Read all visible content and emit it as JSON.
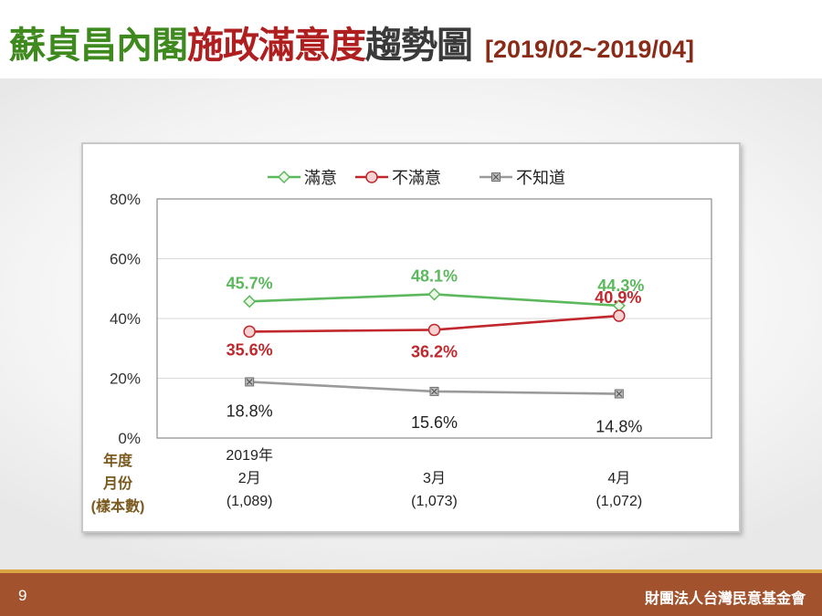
{
  "slide": {
    "title_part1": "蘇貞昌內閣",
    "title_part2": "施政滿意度",
    "title_part3": "趨勢圖",
    "title_range": "[2019/02~2019/04]",
    "page_number": "9",
    "organization": "財團法人台灣民意基金會"
  },
  "chart_data": {
    "type": "line",
    "categories": [
      "2019年 2月 (1,089)",
      "3月 (1,073)",
      "4月 (1,072)"
    ],
    "category_lines": [
      [
        "2019年",
        "2月",
        "(1,089)"
      ],
      [
        "3月",
        "(1,073)"
      ],
      [
        "4月",
        "(1,072)"
      ]
    ],
    "row_header": [
      "年度",
      "月份",
      "(樣本數)"
    ],
    "ylim": [
      0,
      80
    ],
    "yticks": [
      "0%",
      "20%",
      "40%",
      "60%",
      "80%"
    ],
    "legend_position": "top",
    "grid": true,
    "series": [
      {
        "name": "滿意",
        "values": [
          45.7,
          48.1,
          44.3
        ],
        "labels": [
          "45.7%",
          "48.1%",
          "44.3%"
        ],
        "color": "#5cb85c",
        "marker": "diamond"
      },
      {
        "name": "不滿意",
        "values": [
          35.6,
          36.2,
          40.9
        ],
        "labels": [
          "35.6%",
          "36.2%",
          "40.9%"
        ],
        "color": "#c0282d",
        "marker": "circle"
      },
      {
        "name": "不知道",
        "values": [
          18.8,
          15.6,
          14.8
        ],
        "labels": [
          "18.8%",
          "15.6%",
          "14.8%"
        ],
        "color": "#9a9a9a",
        "marker": "square-x"
      }
    ]
  }
}
